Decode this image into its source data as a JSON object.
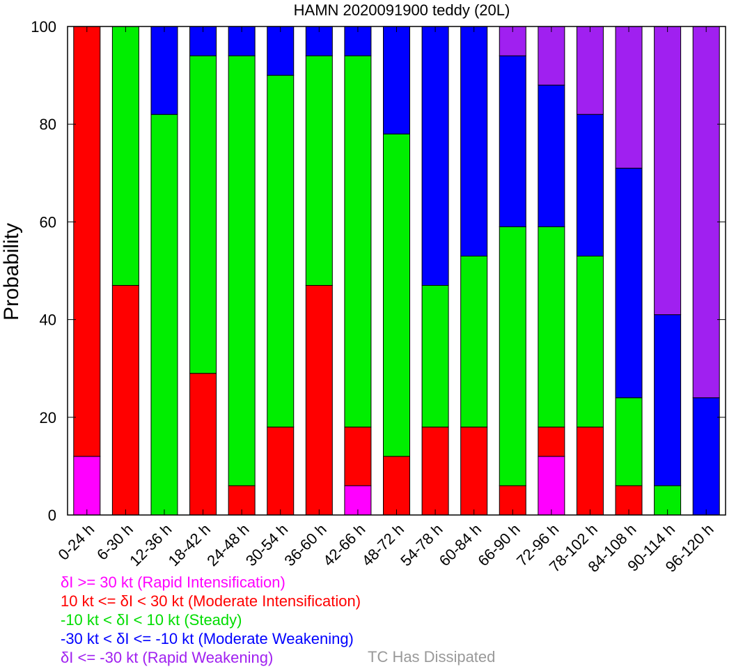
{
  "chart_data": {
    "type": "bar",
    "stacked": true,
    "title": "HAMN 2020091900 teddy (20L)",
    "ylabel": "Probability",
    "xlabel": "",
    "ylim": [
      0,
      100
    ],
    "yticks": [
      "0",
      "20",
      "40",
      "60",
      "80",
      "100"
    ],
    "grid": false,
    "categories": [
      "0-24 h",
      "6-30 h",
      "12-36 h",
      "18-42 h",
      "24-48 h",
      "30-54 h",
      "36-60 h",
      "42-66 h",
      "48-72 h",
      "54-78 h",
      "60-84 h",
      "66-90 h",
      "72-96 h",
      "78-102 h",
      "84-108 h",
      "90-114 h",
      "96-120 h"
    ],
    "series": [
      {
        "name": "δI >= 30 kt (Rapid Intensification)",
        "color": "#ff00ff",
        "values": [
          12,
          0,
          0,
          0,
          0,
          0,
          0,
          6,
          0,
          0,
          0,
          0,
          12,
          0,
          0,
          0,
          0
        ]
      },
      {
        "name": "10 kt <= δI < 30 kt (Moderate Intensification)",
        "color": "#ff0000",
        "values": [
          88,
          47,
          0,
          29,
          6,
          18,
          47,
          12,
          12,
          18,
          18,
          6,
          6,
          18,
          6,
          0,
          0
        ]
      },
      {
        "name": "-10 kt < δI < 10 kt (Steady)",
        "color": "#00ee00",
        "values": [
          0,
          53,
          82,
          65,
          88,
          72,
          47,
          76,
          66,
          29,
          35,
          53,
          41,
          35,
          18,
          6,
          0
        ]
      },
      {
        "name": "-30 kt < δI <= -10 kt (Moderate Weakening)",
        "color": "#0000ff",
        "values": [
          0,
          0,
          18,
          6,
          6,
          10,
          6,
          6,
          22,
          53,
          47,
          35,
          29,
          29,
          47,
          35,
          24
        ]
      },
      {
        "name": "δI <= -30 kt (Rapid Weakening)",
        "color": "#a020f0",
        "values": [
          0,
          0,
          0,
          0,
          0,
          0,
          0,
          0,
          0,
          0,
          0,
          6,
          12,
          18,
          29,
          59,
          76
        ]
      },
      {
        "name": "TC Has Dissipated",
        "color": "#999999",
        "values": [
          0,
          0,
          0,
          0,
          0,
          0,
          0,
          0,
          0,
          0,
          0,
          0,
          0,
          0,
          0,
          0,
          0
        ]
      }
    ]
  }
}
